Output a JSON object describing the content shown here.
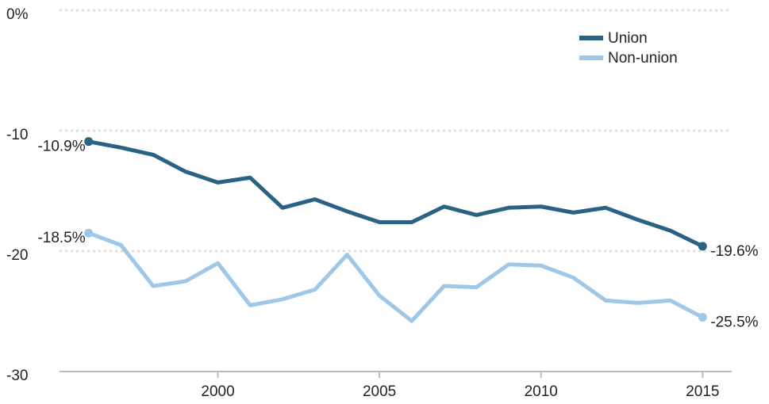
{
  "chart_data": {
    "type": "line",
    "x": [
      1996,
      1997,
      1998,
      1999,
      2000,
      2001,
      2002,
      2003,
      2004,
      2005,
      2006,
      2007,
      2008,
      2009,
      2010,
      2011,
      2012,
      2013,
      2014,
      2015
    ],
    "series": [
      {
        "name": "Union",
        "color": "#2a6285",
        "values": [
          -10.9,
          -11.4,
          -12.0,
          -13.4,
          -14.3,
          -13.9,
          -16.4,
          -15.7,
          -16.7,
          -17.6,
          -17.6,
          -16.3,
          -17.0,
          -16.4,
          -16.3,
          -16.8,
          -16.4,
          -17.4,
          -18.3,
          -19.6
        ],
        "value_labels": [
          "-10.9%",
          null,
          null,
          null,
          null,
          null,
          null,
          null,
          null,
          null,
          null,
          null,
          null,
          null,
          null,
          null,
          null,
          null,
          null,
          "-19.6%"
        ]
      },
      {
        "name": "Non-union",
        "color": "#9fc8e8",
        "values": [
          -18.5,
          -19.5,
          -22.9,
          -22.5,
          -21.0,
          -24.5,
          -24.0,
          -23.2,
          -20.3,
          -23.7,
          -25.8,
          -22.9,
          -23.0,
          -21.1,
          -21.2,
          -22.2,
          -24.1,
          -24.3,
          -24.1,
          -25.5
        ],
        "value_labels": [
          "-18.5%",
          null,
          null,
          null,
          null,
          null,
          null,
          null,
          null,
          null,
          null,
          null,
          null,
          null,
          null,
          null,
          null,
          null,
          null,
          "-25.5%"
        ]
      }
    ],
    "xlim": [
      1995.1,
      2015.9
    ],
    "xticks": [
      2000,
      2005,
      2010,
      2015
    ],
    "ylim": [
      -30,
      0
    ],
    "yticks": [
      {
        "value": 0,
        "label": "0%"
      },
      -10,
      -20,
      -30
    ],
    "grid": true,
    "legend": "top-right"
  }
}
